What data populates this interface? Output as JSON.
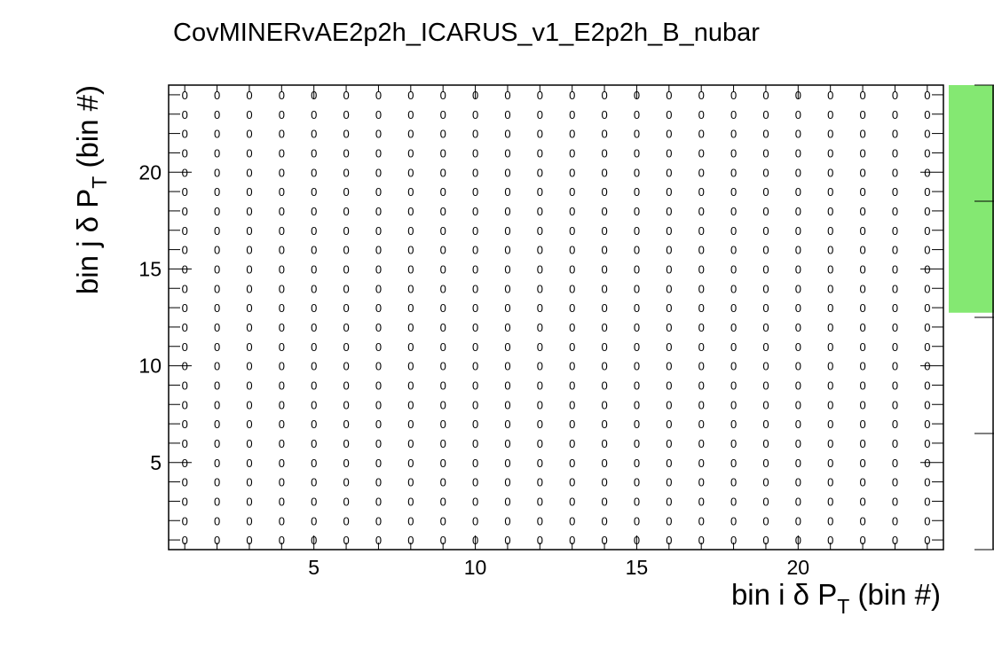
{
  "chart_data": {
    "type": "heatmap",
    "title": "CovMINERvAE2p2h_ICARUS_v1_E2p2h_B_nubar",
    "xlabel": {
      "main": "bin i ",
      "greek": "δ",
      "var": " P",
      "sub": "T",
      "unit": " (bin #)"
    },
    "ylabel": {
      "main": "bin j ",
      "greek": "δ",
      "var": " P",
      "sub": "T",
      "unit": " (bin #)"
    },
    "xlim": [
      0.5,
      24.5
    ],
    "ylim": [
      0.5,
      24.5
    ],
    "n_bins_x": 24,
    "n_bins_y": 24,
    "x_tick_labels": [
      "5",
      "10",
      "15",
      "20"
    ],
    "y_tick_labels": [
      "5",
      "10",
      "15",
      "20"
    ],
    "cell_value": 0,
    "cell_text": "0",
    "colorbar": {
      "fill_color": "#84e872",
      "filled_fraction": 0.49
    },
    "colors": {
      "frame": "#000000",
      "background": "#ffffff",
      "palette_fill": "#84e872"
    }
  }
}
